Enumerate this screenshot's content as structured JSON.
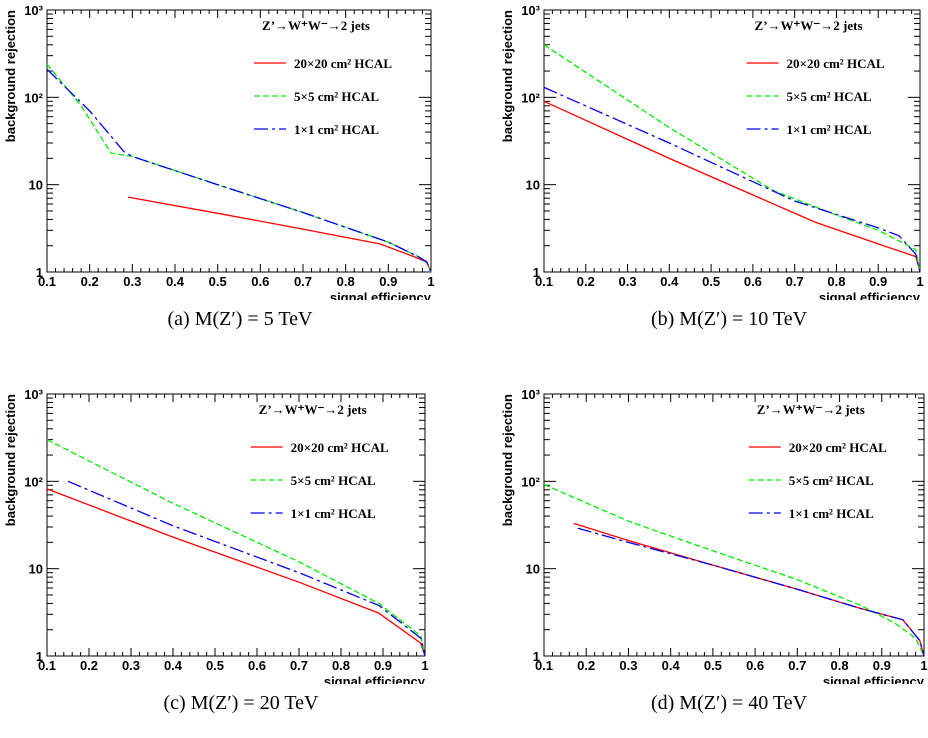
{
  "chart_data": [
    {
      "type": "line",
      "caption": "(a) M(Z′) = 5 TeV",
      "title": "Z’→W⁺W⁻→2 jets",
      "xlabel": "signal efficiency",
      "ylabel": "background rejection",
      "xlim": [
        0.1,
        1.0
      ],
      "ylim": [
        1,
        1000
      ],
      "yscale": "log",
      "x_ticks": [
        "0.1",
        "0.2",
        "0.3",
        "0.4",
        "0.5",
        "0.6",
        "0.7",
        "0.8",
        "0.9",
        "1"
      ],
      "y_ticks": [
        "1",
        "10",
        "10²",
        "10³"
      ],
      "legend": "top-right",
      "series": [
        {
          "name": "20×20 cm² HCAL",
          "color": "#ff0000",
          "dash": "solid",
          "x": [
            0.29,
            0.5,
            0.7,
            0.88,
            0.96,
            0.99,
            1.0
          ],
          "y": [
            7.2,
            4.7,
            3.1,
            2.1,
            1.5,
            1.3,
            1.0
          ]
        },
        {
          "name": "5×5 cm² HCAL",
          "color": "#00ee00",
          "dash": "dashed",
          "x": [
            0.1,
            0.18,
            0.25,
            0.3,
            0.5,
            0.7,
            0.9,
            0.97,
            0.99,
            1.0
          ],
          "y": [
            240,
            80,
            23,
            21,
            10,
            4.8,
            2.2,
            1.5,
            1.3,
            1.0
          ]
        },
        {
          "name": "1×1 cm² HCAL",
          "color": "#0000ee",
          "dash": "dashdot",
          "x": [
            0.1,
            0.2,
            0.28,
            0.3,
            0.5,
            0.7,
            0.9,
            0.97,
            0.99,
            1.0
          ],
          "y": [
            210,
            70,
            24,
            21,
            10,
            4.8,
            2.2,
            1.5,
            1.3,
            1.0
          ]
        }
      ]
    },
    {
      "type": "line",
      "caption": "(b) M(Z′) = 10 TeV",
      "title": "Z’→W⁺W⁻→2 jets",
      "xlabel": "signal efficiency",
      "ylabel": "background rejection",
      "xlim": [
        0.1,
        1.0
      ],
      "ylim": [
        1,
        1000
      ],
      "yscale": "log",
      "x_ticks": [
        "0.1",
        "0.2",
        "0.3",
        "0.4",
        "0.5",
        "0.6",
        "0.7",
        "0.8",
        "0.9",
        "1"
      ],
      "y_ticks": [
        "1",
        "10",
        "10²",
        "10³"
      ],
      "legend": "top-right",
      "series": [
        {
          "name": "20×20 cm² HCAL",
          "color": "#ff0000",
          "dash": "solid",
          "x": [
            0.1,
            0.4,
            0.75,
            0.9,
            0.99,
            1.0
          ],
          "y": [
            90,
            20,
            3.7,
            2.1,
            1.5,
            1.0
          ]
        },
        {
          "name": "5×5 cm² HCAL",
          "color": "#00ee00",
          "dash": "dashed",
          "x": [
            0.1,
            0.4,
            0.65,
            0.8,
            0.9,
            0.99,
            1.0
          ],
          "y": [
            400,
            45,
            8.5,
            4.5,
            3.0,
            1.8,
            1.0
          ]
        },
        {
          "name": "1×1 cm² HCAL",
          "color": "#0000ee",
          "dash": "dashdot",
          "x": [
            0.1,
            0.4,
            0.7,
            0.9,
            0.95,
            0.99,
            1.0
          ],
          "y": [
            130,
            30,
            6.5,
            3.2,
            2.6,
            1.6,
            1.0
          ]
        }
      ]
    },
    {
      "type": "line",
      "caption": "(c) M(Z′) = 20 TeV",
      "title": "Z’→W⁺W⁻→2 jets",
      "xlabel": "signal efficiency",
      "ylabel": "background rejection",
      "xlim": [
        0.1,
        1.0
      ],
      "ylim": [
        1,
        1000
      ],
      "yscale": "log",
      "x_ticks": [
        "0.1",
        "0.2",
        "0.3",
        "0.4",
        "0.5",
        "0.6",
        "0.7",
        "0.8",
        "0.9",
        "1"
      ],
      "y_ticks": [
        "1",
        "10",
        "10²",
        "10³"
      ],
      "legend": "top-right",
      "series": [
        {
          "name": "20×20 cm² HCAL",
          "color": "#ff0000",
          "dash": "solid",
          "x": [
            0.1,
            0.4,
            0.7,
            0.89,
            0.99,
            1.0
          ],
          "y": [
            82,
            23,
            7.0,
            3.1,
            1.4,
            1.0
          ]
        },
        {
          "name": "5×5 cm² HCAL",
          "color": "#00ee00",
          "dash": "dashed",
          "x": [
            0.1,
            0.4,
            0.7,
            0.89,
            0.99,
            1.0
          ],
          "y": [
            300,
            56,
            12,
            4.0,
            1.7,
            1.0
          ]
        },
        {
          "name": "1×1 cm² HCAL",
          "color": "#0000ee",
          "dash": "dashdot",
          "x": [
            0.15,
            0.4,
            0.7,
            0.89,
            0.99,
            1.0
          ],
          "y": [
            100,
            31,
            9.0,
            3.8,
            1.6,
            1.0
          ]
        }
      ]
    },
    {
      "type": "line",
      "caption": "(d) M(Z′) = 40 TeV",
      "title": "Z’→W⁺W⁻→2 jets",
      "xlabel": "signal efficiency",
      "ylabel": "background rejection",
      "xlim": [
        0.1,
        1.0
      ],
      "ylim": [
        1,
        1000
      ],
      "yscale": "log",
      "x_ticks": [
        "0.1",
        "0.2",
        "0.3",
        "0.4",
        "0.5",
        "0.6",
        "0.7",
        "0.8",
        "0.9",
        "1"
      ],
      "y_ticks": [
        "1",
        "10",
        "10²",
        "10³"
      ],
      "legend": "top-right",
      "series": [
        {
          "name": "20×20 cm² HCAL",
          "color": "#ff0000",
          "dash": "solid",
          "x": [
            0.17,
            0.3,
            0.5,
            0.7,
            0.85,
            0.95,
            0.99,
            1.0
          ],
          "y": [
            33,
            21,
            11,
            5.8,
            3.5,
            2.6,
            1.5,
            1.0
          ]
        },
        {
          "name": "5×5 cm² HCAL",
          "color": "#00ee00",
          "dash": "dashed",
          "x": [
            0.1,
            0.3,
            0.5,
            0.7,
            0.85,
            0.93,
            0.98,
            1.0
          ],
          "y": [
            92,
            35,
            16,
            7.5,
            3.8,
            2.4,
            1.6,
            1.0
          ]
        },
        {
          "name": "1×1 cm² HCAL",
          "color": "#0000ee",
          "dash": "dashdot",
          "x": [
            0.18,
            0.3,
            0.5,
            0.7,
            0.85,
            0.95,
            0.99,
            1.0
          ],
          "y": [
            29,
            20,
            11,
            5.8,
            3.5,
            2.6,
            1.5,
            1.0
          ]
        }
      ]
    }
  ]
}
